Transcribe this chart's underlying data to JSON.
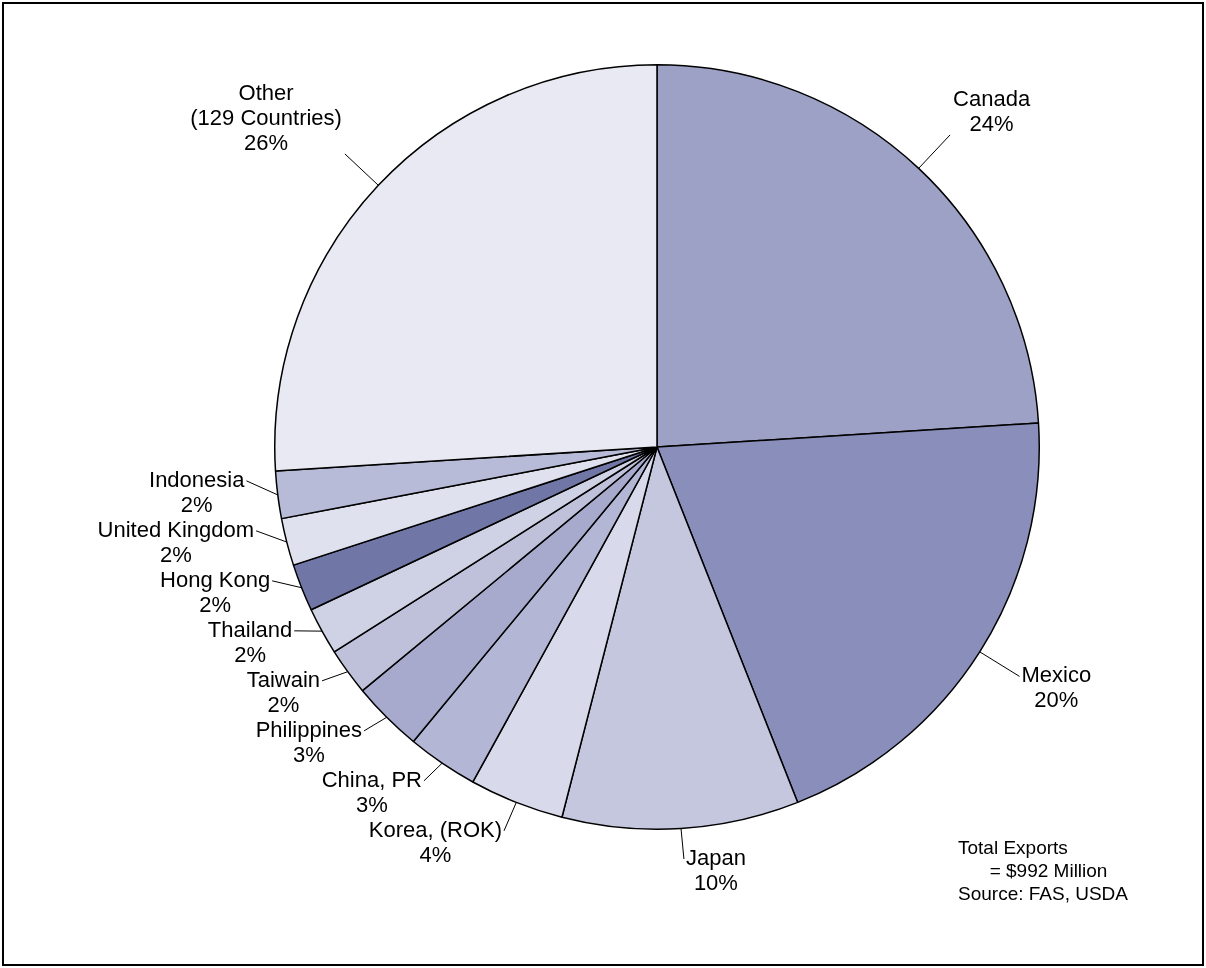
{
  "chart_data": {
    "type": "pie",
    "categories": [
      "Canada",
      "Mexico",
      "Japan",
      "Korea, (ROK)",
      "China, PR",
      "Philippines",
      "Taiwain",
      "Thailand",
      "Hong Kong",
      "United Kingdom",
      "Indonesia",
      "Other\n(129 Countries)"
    ],
    "values": [
      24,
      20,
      10,
      4,
      3,
      3,
      2,
      2,
      2,
      2,
      2,
      26
    ],
    "value_labels": [
      "24%",
      "20%",
      "10%",
      "4%",
      "3%",
      "3%",
      "2%",
      "2%",
      "2%",
      "2%",
      "2%",
      "26%"
    ],
    "colors": [
      "#9ea1c6",
      "#8a8eba",
      "#c5c7de",
      "#d8d9ea",
      "#b3b6d4",
      "#a7aacc",
      "#bfc1da",
      "#cfd1e4",
      "#7076a6",
      "#e0e1ee",
      "#b8bbd7",
      "#e8e9f2"
    ],
    "annotations": [
      "Total Exports\n      = $992 Million",
      "Source: FAS, USDA"
    ],
    "legend": false
  }
}
